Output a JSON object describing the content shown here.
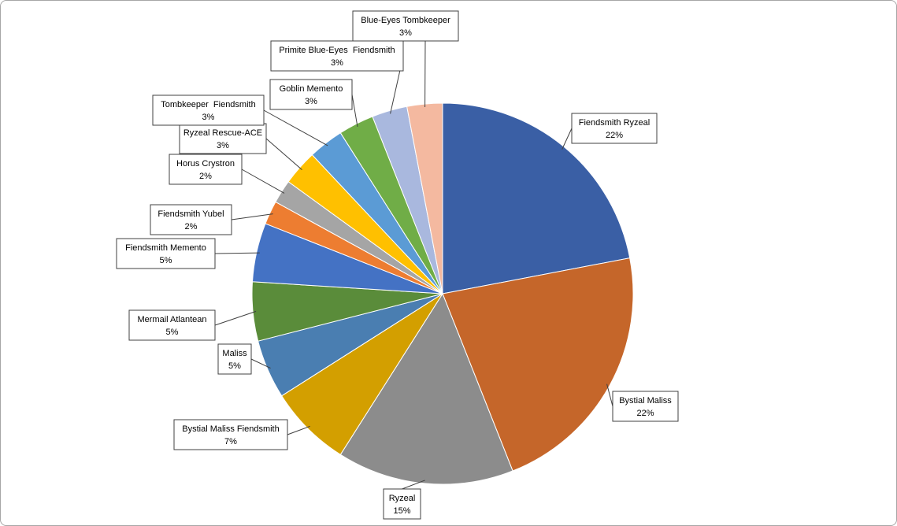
{
  "chart_data": {
    "type": "pie",
    "title": "",
    "slices": [
      {
        "name": "Fiendsmith Ryzeal",
        "value": 22,
        "label": "22%",
        "color": "#3a5fa5"
      },
      {
        "name": "Bystial Maliss",
        "value": 22,
        "label": "22%",
        "color": "#c5662a"
      },
      {
        "name": "Ryzeal",
        "value": 15,
        "label": "15%",
        "color": "#8c8c8c"
      },
      {
        "name": "Bystial Maliss Fiendsmith",
        "value": 7,
        "label": "7%",
        "color": "#d39f00"
      },
      {
        "name": "Maliss",
        "value": 5,
        "label": "5%",
        "color": "#4a7eb1"
      },
      {
        "name": "Mermail Atlantean",
        "value": 5,
        "label": "5%",
        "color": "#5a8c3a"
      },
      {
        "name": "Fiendsmith Memento",
        "value": 5,
        "label": "5%",
        "color": "#4472c4"
      },
      {
        "name": "Fiendsmith Yubel",
        "value": 2,
        "label": "2%",
        "color": "#ed7d31"
      },
      {
        "name": "Horus Crystron",
        "value": 2,
        "label": "2%",
        "color": "#a5a5a5"
      },
      {
        "name": "Ryzeal Rescue-ACE",
        "value": 3,
        "label": "3%",
        "color": "#ffc000"
      },
      {
        "name": "Tombkeeper  Fiendsmith",
        "value": 3,
        "label": "3%",
        "color": "#5b9bd5"
      },
      {
        "name": "Goblin Memento",
        "value": 3,
        "label": "3%",
        "color": "#70ad47"
      },
      {
        "name": "Primite Blue-Eyes  Fiendsmith",
        "value": 3,
        "label": "3%",
        "color": "#a9b8de"
      },
      {
        "name": "Blue-Eyes Tombkeeper",
        "value": 3,
        "label": "3%",
        "color": "#f4b9a0"
      }
    ]
  }
}
